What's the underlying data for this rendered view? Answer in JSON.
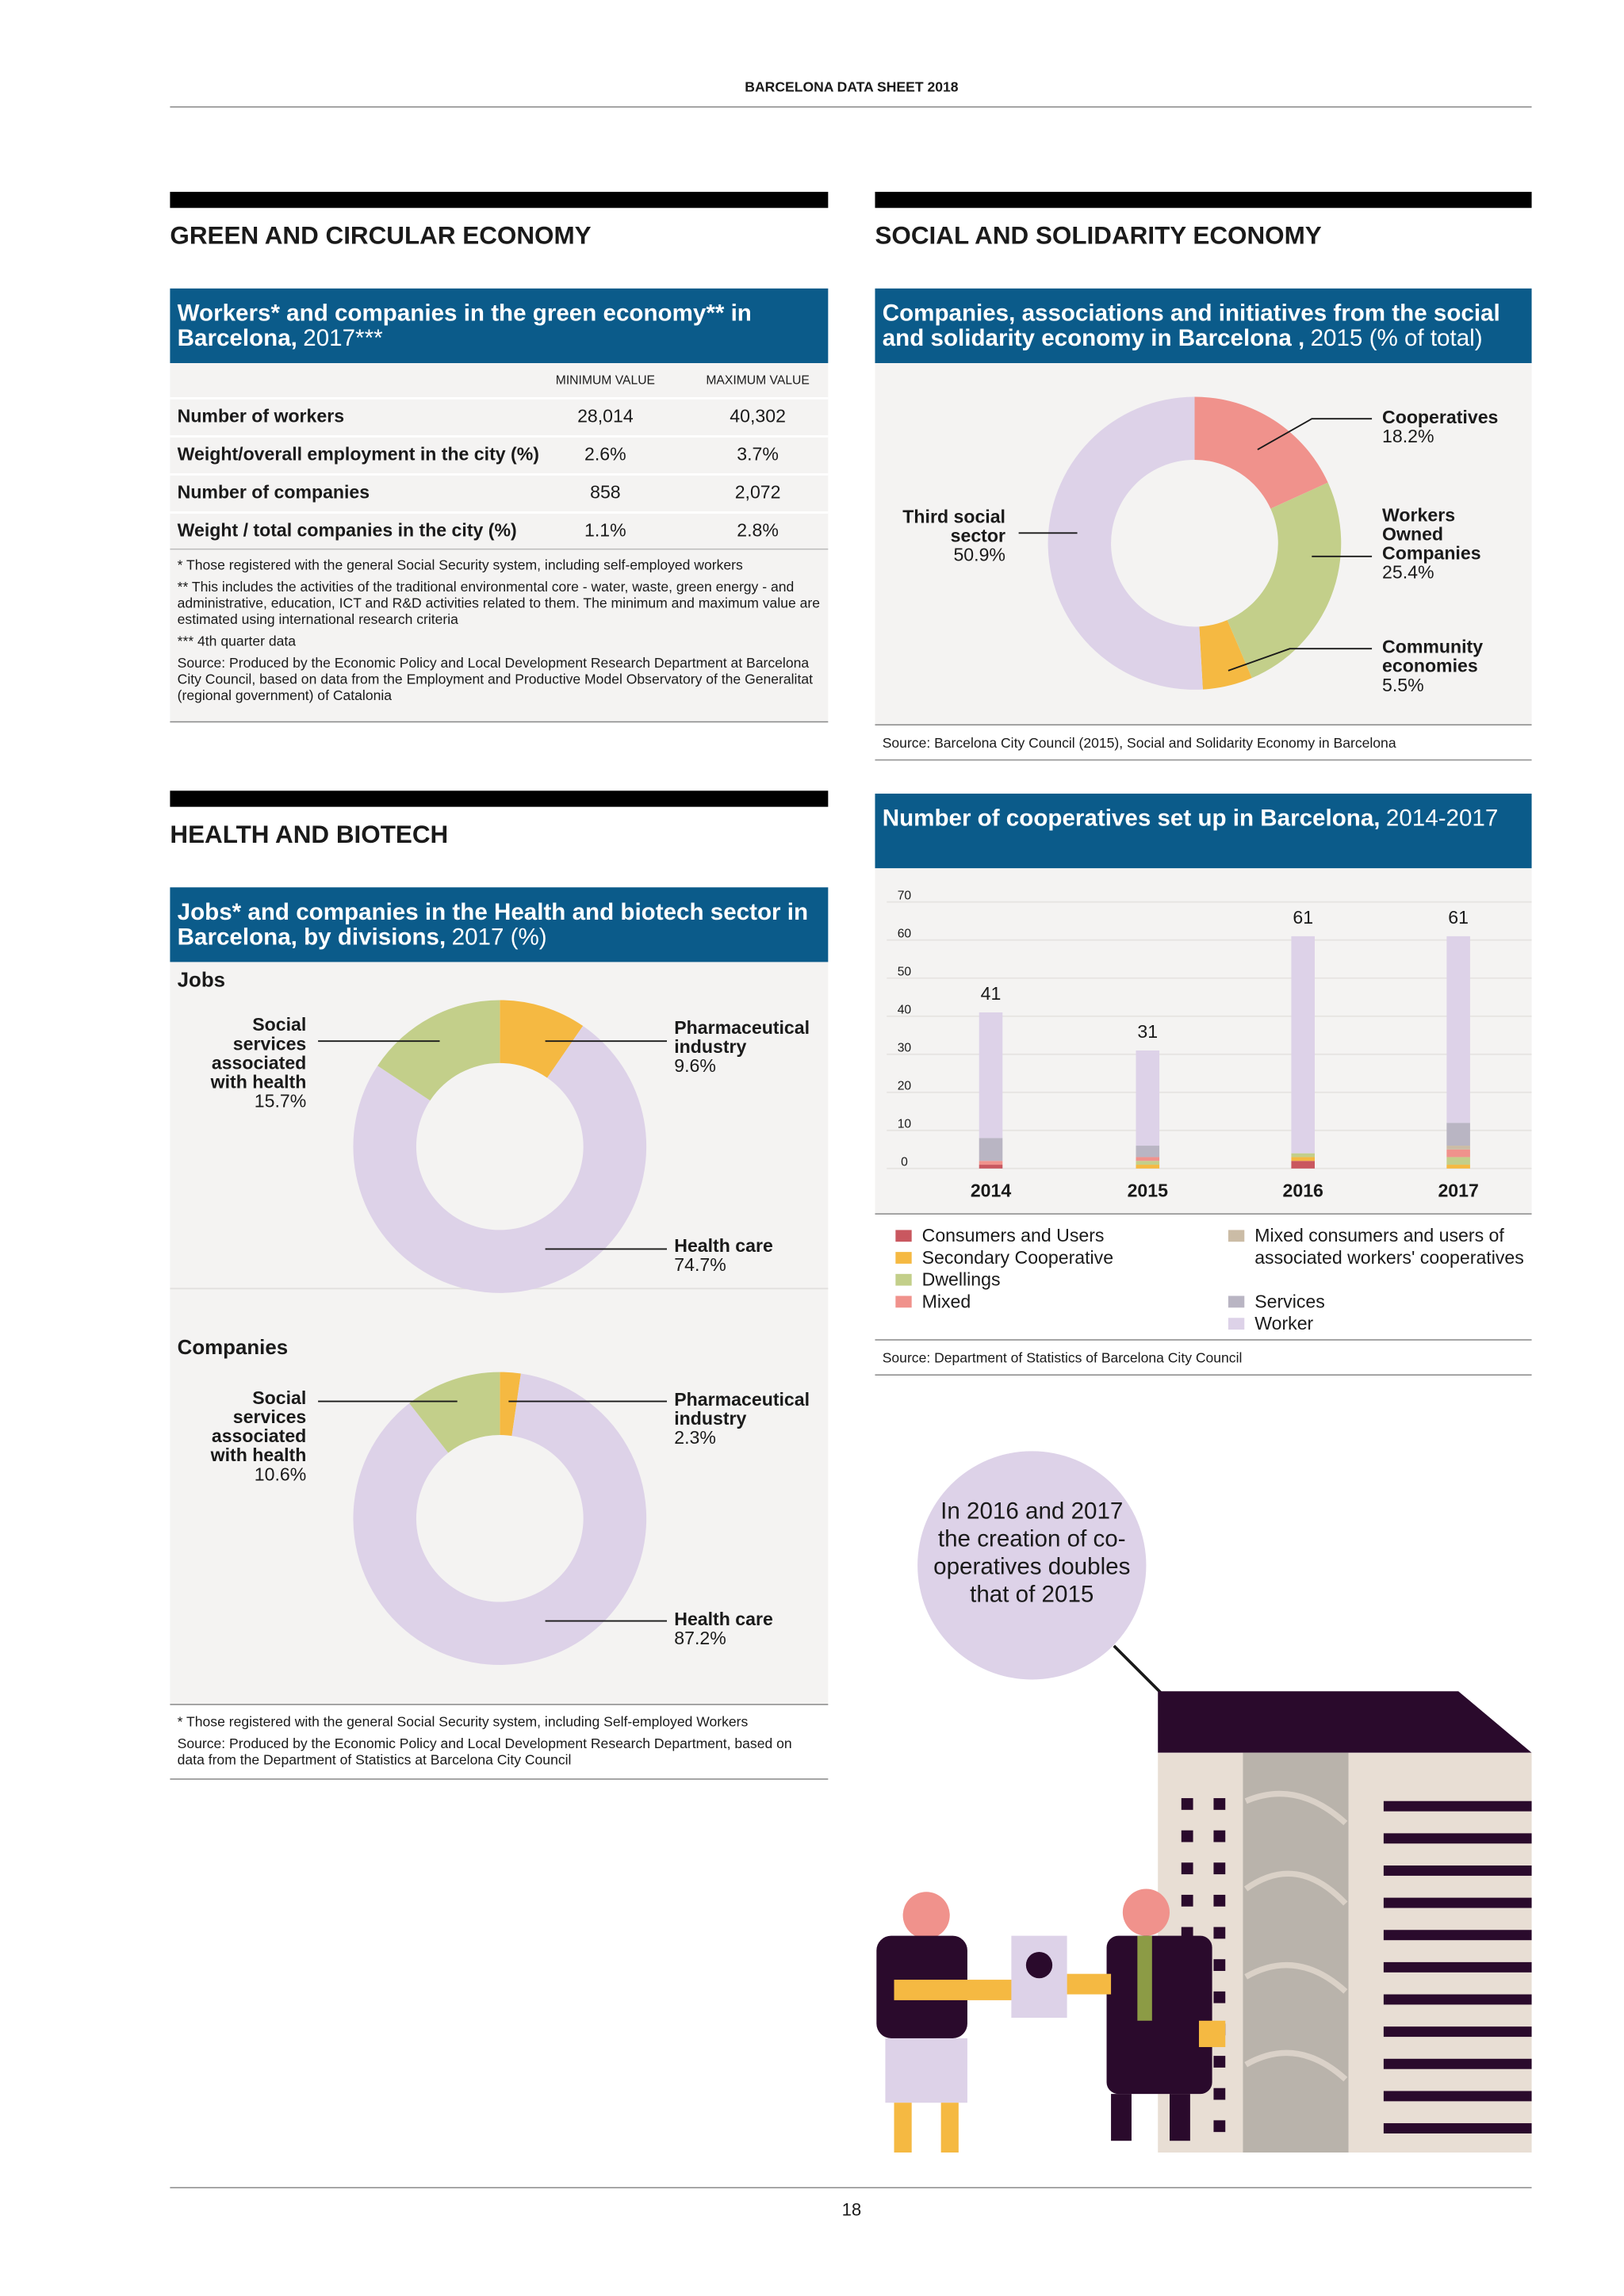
{
  "header": {
    "title": "BARCELONA DATA SHEET 2018",
    "page_number": "18"
  },
  "green_economy": {
    "section": "GREEN AND CIRCULAR ECONOMY",
    "title": "Workers* and companies in the green economy** in Barcelona,",
    "subtitle": "2017***",
    "table": {
      "columns": [
        "MINIMUM VALUE",
        "MAXIMUM VALUE"
      ],
      "rows": [
        [
          "Number of workers",
          "28,014",
          "40,302"
        ],
        [
          "Weight/overall employment in the city (%)",
          "2.6%",
          "3.7%"
        ],
        [
          "Number of companies",
          "858",
          "2,072"
        ],
        [
          "Weight / total companies in the city (%)",
          "1.1%",
          "2.8%"
        ]
      ]
    },
    "notes": [
      "* Those registered with the general Social Security system, including self-employed workers",
      "** This includes the activities of the traditional environmental core - water, waste, green energy - and administrative, education, ICT and R&D activities related to them. The minimum and maximum value are estimated using international research criteria",
      "*** 4th quarter data",
      "Source: Produced by the Economic Policy and Local Development Research Department at Barcelona City Council, based on data from the Employment and Productive Model Observatory of the Generalitat (regional government) of Catalonia"
    ]
  },
  "social": {
    "section": "SOCIAL AND SOLIDARITY ECONOMY"
  },
  "health": {
    "section": "HEALTH AND BIOTECH",
    "title": "Jobs* and companies in the Health and biotech sector in Barcelona, by divisions,",
    "subtitle": "2017 (%)",
    "notes": [
      "* Those registered with the general Social Security system, including Self-employed Workers",
      "Source: Produced by the Economic Policy and Local Development Research Department, based on data from the Department of Statistics at Barcelona City Council"
    ]
  },
  "chart_data": [
    {
      "type": "donut",
      "title": "Companies, associations and initiatives from the social and solidarity economy in Barcelona ,",
      "subtitle": "2015 (% of total)",
      "categories": [
        "Cooperatives",
        "Workers Owned Companies",
        "Community economies",
        "Third social sector"
      ],
      "values": [
        18.2,
        25.4,
        5.5,
        50.9
      ],
      "value_labels": [
        "18.2%",
        "25.4%",
        "5.5%",
        "50.9%"
      ],
      "colors": [
        "#f0928c",
        "#c3cf8a",
        "#f5b942",
        "#ddd2e8"
      ],
      "source": "Source: Barcelona City Council (2015), Social and Solidarity Economy in Barcelona"
    },
    {
      "type": "donut",
      "title": "Jobs",
      "categories": [
        "Pharmaceutical industry",
        "Health care",
        "Social services associated with health"
      ],
      "values": [
        9.6,
        74.7,
        15.7
      ],
      "value_labels": [
        "9.6%",
        "74.7%",
        "15.7%"
      ],
      "colors": [
        "#f5b942",
        "#ddd2e8",
        "#c3cf8a"
      ]
    },
    {
      "type": "donut",
      "title": "Companies",
      "categories": [
        "Pharmaceutical industry",
        "Health care",
        "Social services associated with health"
      ],
      "values": [
        2.3,
        87.2,
        10.6
      ],
      "value_labels": [
        "2.3%",
        "87.2%",
        "10.6%"
      ],
      "colors": [
        "#f5b942",
        "#ddd2e8",
        "#c3cf8a"
      ]
    },
    {
      "type": "stacked_bar",
      "title": "Number of cooperatives set up in Barcelona,",
      "subtitle": "2014-2017",
      "categories": [
        "2014",
        "2015",
        "2016",
        "2017"
      ],
      "ylim": [
        0,
        70
      ],
      "yticks": [
        0,
        10,
        20,
        30,
        40,
        50,
        60,
        70
      ],
      "grid": true,
      "totals": [
        41,
        31,
        61,
        61
      ],
      "series": [
        {
          "name": "Consumers and Users",
          "color": "#c9575f",
          "values": [
            1,
            0,
            2,
            0
          ]
        },
        {
          "name": "Secondary Cooperative",
          "color": "#f5b942",
          "values": [
            0,
            1,
            1,
            1
          ]
        },
        {
          "name": "Dwellings",
          "color": "#c3cf8a",
          "values": [
            0,
            1,
            1,
            2
          ]
        },
        {
          "name": "Mixed",
          "color": "#f0928c",
          "values": [
            1,
            1,
            0,
            2
          ]
        },
        {
          "name": "Mixed consumers and users of associated workers' cooperatives",
          "color": "#cbbca6",
          "values": [
            0,
            0,
            0,
            1
          ]
        },
        {
          "name": "Services",
          "color": "#b9b5c3",
          "values": [
            6,
            3,
            0,
            6
          ]
        },
        {
          "name": "Worker",
          "color": "#ddd2e8",
          "values": [
            33,
            25,
            57,
            49
          ]
        }
      ],
      "source": "Source: Department of Statistics of Barcelona City Council"
    }
  ],
  "callout": "In 2016 and 2017 the creation of co-operatives doubles that of 2015"
}
